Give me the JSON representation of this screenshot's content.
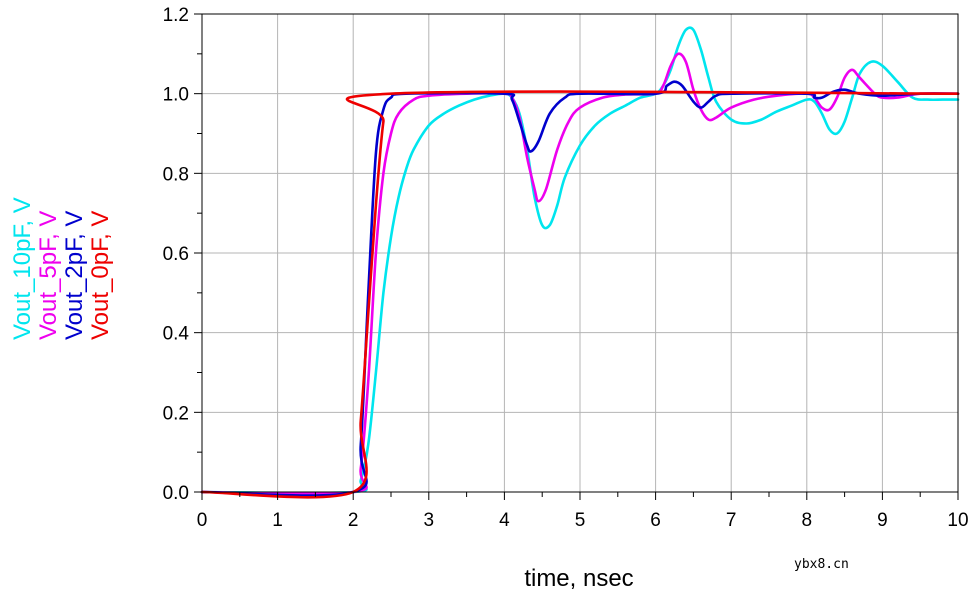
{
  "chart_data": {
    "type": "line",
    "xlabel": "time, nsec",
    "ylabel": "",
    "xlim": [
      0,
      10
    ],
    "ylim": [
      0,
      1.2
    ],
    "xticks": [
      "0",
      "1",
      "2",
      "3",
      "4",
      "5",
      "6",
      "7",
      "8",
      "9",
      "10"
    ],
    "yticks": [
      "0.0",
      "0.2",
      "0.4",
      "0.6",
      "0.8",
      "1.0",
      "1.2"
    ],
    "grid": true,
    "legend_placement": "left (vertical)",
    "series": [
      {
        "name": "Vout_10pF, V",
        "color": "#00E5EE",
        "points": [
          [
            0,
            0
          ],
          [
            2,
            0
          ],
          [
            2.1,
            0.03
          ],
          [
            2.2,
            0.12
          ],
          [
            2.3,
            0.3
          ],
          [
            2.4,
            0.5
          ],
          [
            2.5,
            0.64
          ],
          [
            2.6,
            0.74
          ],
          [
            2.7,
            0.81
          ],
          [
            2.8,
            0.86
          ],
          [
            3.0,
            0.92
          ],
          [
            3.2,
            0.95
          ],
          [
            3.4,
            0.97
          ],
          [
            3.6,
            0.985
          ],
          [
            3.8,
            0.995
          ],
          [
            4.0,
            1.0
          ],
          [
            4.1,
            0.99
          ],
          [
            4.2,
            0.95
          ],
          [
            4.3,
            0.86
          ],
          [
            4.4,
            0.74
          ],
          [
            4.5,
            0.67
          ],
          [
            4.6,
            0.67
          ],
          [
            4.7,
            0.72
          ],
          [
            4.8,
            0.79
          ],
          [
            5.0,
            0.87
          ],
          [
            5.2,
            0.92
          ],
          [
            5.4,
            0.95
          ],
          [
            5.6,
            0.97
          ],
          [
            5.8,
            0.99
          ],
          [
            6.0,
            1.0
          ],
          [
            6.1,
            1.02
          ],
          [
            6.2,
            1.06
          ],
          [
            6.3,
            1.12
          ],
          [
            6.4,
            1.16
          ],
          [
            6.5,
            1.16
          ],
          [
            6.6,
            1.11
          ],
          [
            6.7,
            1.04
          ],
          [
            6.8,
            0.98
          ],
          [
            7.0,
            0.935
          ],
          [
            7.2,
            0.925
          ],
          [
            7.4,
            0.935
          ],
          [
            7.6,
            0.955
          ],
          [
            7.8,
            0.97
          ],
          [
            8.0,
            0.985
          ],
          [
            8.1,
            0.98
          ],
          [
            8.2,
            0.95
          ],
          [
            8.3,
            0.91
          ],
          [
            8.4,
            0.9
          ],
          [
            8.5,
            0.93
          ],
          [
            8.6,
            0.99
          ],
          [
            8.7,
            1.05
          ],
          [
            8.85,
            1.08
          ],
          [
            9.0,
            1.07
          ],
          [
            9.2,
            1.03
          ],
          [
            9.4,
            0.99
          ],
          [
            9.6,
            0.985
          ],
          [
            9.8,
            0.985
          ],
          [
            10,
            0.985
          ]
        ]
      },
      {
        "name": "Vout_5pF, V",
        "color": "#EE00EE",
        "points": [
          [
            0,
            0
          ],
          [
            2,
            0
          ],
          [
            2.1,
            0.06
          ],
          [
            2.2,
            0.28
          ],
          [
            2.3,
            0.6
          ],
          [
            2.4,
            0.8
          ],
          [
            2.5,
            0.9
          ],
          [
            2.6,
            0.95
          ],
          [
            2.8,
            0.985
          ],
          [
            3.0,
            0.995
          ],
          [
            3.5,
            1.0
          ],
          [
            4.0,
            1.0
          ],
          [
            4.1,
            0.99
          ],
          [
            4.2,
            0.94
          ],
          [
            4.3,
            0.84
          ],
          [
            4.4,
            0.76
          ],
          [
            4.45,
            0.73
          ],
          [
            4.55,
            0.76
          ],
          [
            4.7,
            0.86
          ],
          [
            4.85,
            0.93
          ],
          [
            5.0,
            0.965
          ],
          [
            5.3,
            0.99
          ],
          [
            5.6,
            0.998
          ],
          [
            6.0,
            1.0
          ],
          [
            6.1,
            1.02
          ],
          [
            6.2,
            1.07
          ],
          [
            6.3,
            1.1
          ],
          [
            6.4,
            1.08
          ],
          [
            6.5,
            1.01
          ],
          [
            6.6,
            0.96
          ],
          [
            6.7,
            0.935
          ],
          [
            6.8,
            0.94
          ],
          [
            7.0,
            0.965
          ],
          [
            7.3,
            0.985
          ],
          [
            7.6,
            0.995
          ],
          [
            8.0,
            1.0
          ],
          [
            8.1,
            0.99
          ],
          [
            8.2,
            0.965
          ],
          [
            8.3,
            0.96
          ],
          [
            8.4,
            0.99
          ],
          [
            8.5,
            1.04
          ],
          [
            8.6,
            1.06
          ],
          [
            8.7,
            1.04
          ],
          [
            8.9,
            1.0
          ],
          [
            9.0,
            0.99
          ],
          [
            9.2,
            0.99
          ],
          [
            9.5,
            1.0
          ],
          [
            10,
            1.0
          ]
        ]
      },
      {
        "name": "Vout_2pF, V",
        "color": "#0000CD",
        "points": [
          [
            0,
            0
          ],
          [
            2,
            0
          ],
          [
            2.1,
            0.12
          ],
          [
            2.2,
            0.5
          ],
          [
            2.3,
            0.85
          ],
          [
            2.4,
            0.96
          ],
          [
            2.5,
            0.99
          ],
          [
            2.7,
            1.0
          ],
          [
            4.0,
            1.0
          ],
          [
            4.1,
            0.985
          ],
          [
            4.2,
            0.93
          ],
          [
            4.3,
            0.87
          ],
          [
            4.35,
            0.855
          ],
          [
            4.45,
            0.88
          ],
          [
            4.6,
            0.95
          ],
          [
            4.8,
            0.99
          ],
          [
            5.0,
            1.0
          ],
          [
            6.0,
            1.0
          ],
          [
            6.15,
            1.02
          ],
          [
            6.25,
            1.03
          ],
          [
            6.35,
            1.02
          ],
          [
            6.5,
            0.98
          ],
          [
            6.6,
            0.965
          ],
          [
            6.7,
            0.98
          ],
          [
            6.8,
            0.995
          ],
          [
            7.0,
            1.0
          ],
          [
            8.0,
            1.0
          ],
          [
            8.1,
            0.99
          ],
          [
            8.2,
            0.99
          ],
          [
            8.35,
            1.005
          ],
          [
            8.5,
            1.01
          ],
          [
            8.7,
            1.0
          ],
          [
            9.0,
            0.995
          ],
          [
            9.5,
            1.0
          ],
          [
            10,
            1.0
          ]
        ]
      },
      {
        "name": "Vout_0pF, V",
        "color": "#EE0000",
        "points": [
          [
            0,
            0
          ],
          [
            2,
            0
          ],
          [
            2.1,
            0.18
          ],
          [
            2.2,
            0.45
          ],
          [
            2.3,
            0.72
          ],
          [
            2.4,
            0.93
          ],
          [
            2.5,
            1.0
          ],
          [
            10,
            1.0
          ]
        ]
      }
    ]
  },
  "watermark": "ybx8.cn"
}
